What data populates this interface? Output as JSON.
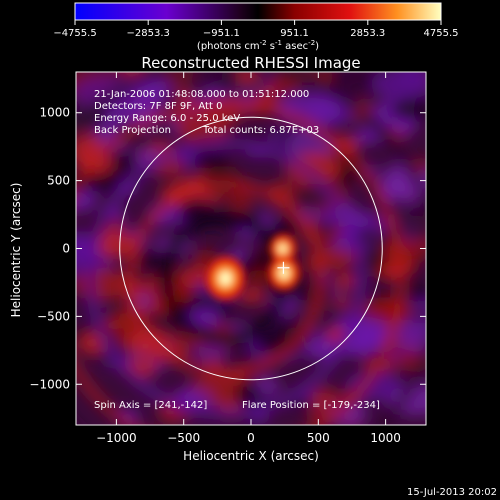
{
  "colorbar": {
    "ticks": [
      "-4755.5",
      "-2853.3",
      "-951.1",
      "951.1",
      "2853.3",
      "4755.5"
    ],
    "units_prefix": "(photons cm",
    "units_exp1": "-2",
    "units_mid": " s",
    "units_exp2": "-1",
    "units_mid2": " asec",
    "units_exp3": "-2",
    "units_suffix": ")"
  },
  "header": {
    "title": "Reconstructed RHESSI Image"
  },
  "info": {
    "time": "21-Jan-2006 01:48:08.000 to 01:51:12.000",
    "detectors": "Detectors: 7F 8F 9F, Att 0",
    "energy": "Energy Range: 6.0 - 25.0 keV",
    "method": "Back Projection",
    "counts": "Total counts: 6.87E+03"
  },
  "footer_left": "Spin Axis = [241,-142]",
  "footer_right": "Flare Position = [-179,-234]",
  "timestamp": "15-Jul-2013 20:02",
  "chart_data": {
    "type": "heatmap",
    "title": "Reconstructed RHESSI Image",
    "xlabel": "Heliocentric X (arcsec)",
    "ylabel": "Heliocentric Y (arcsec)",
    "xlim": [
      -1300,
      1300
    ],
    "ylim": [
      -1300,
      1300
    ],
    "xticks": [
      -1000,
      -500,
      0,
      500,
      1000
    ],
    "yticks": [
      -1000,
      -500,
      0,
      500,
      1000
    ],
    "xtick_labels": [
      "−1000",
      "−500",
      "0",
      "500",
      "1000"
    ],
    "ytick_labels": [
      "1000",
      "500",
      "0",
      "−500",
      "−1000"
    ],
    "color_range": [
      -4755.5,
      4755.5
    ],
    "solar_limb_radius": 975,
    "bright_sources": [
      {
        "x": -190,
        "y": -220,
        "intensity": 1.0
      },
      {
        "x": 245,
        "y": -180,
        "intensity": 0.75
      },
      {
        "x": 235,
        "y": 0,
        "intensity": 0.55
      }
    ],
    "spin_axis": [
      241,
      -142
    ],
    "flare_position": [
      -179,
      -234
    ],
    "crosshair": [
      241,
      -142
    ]
  }
}
